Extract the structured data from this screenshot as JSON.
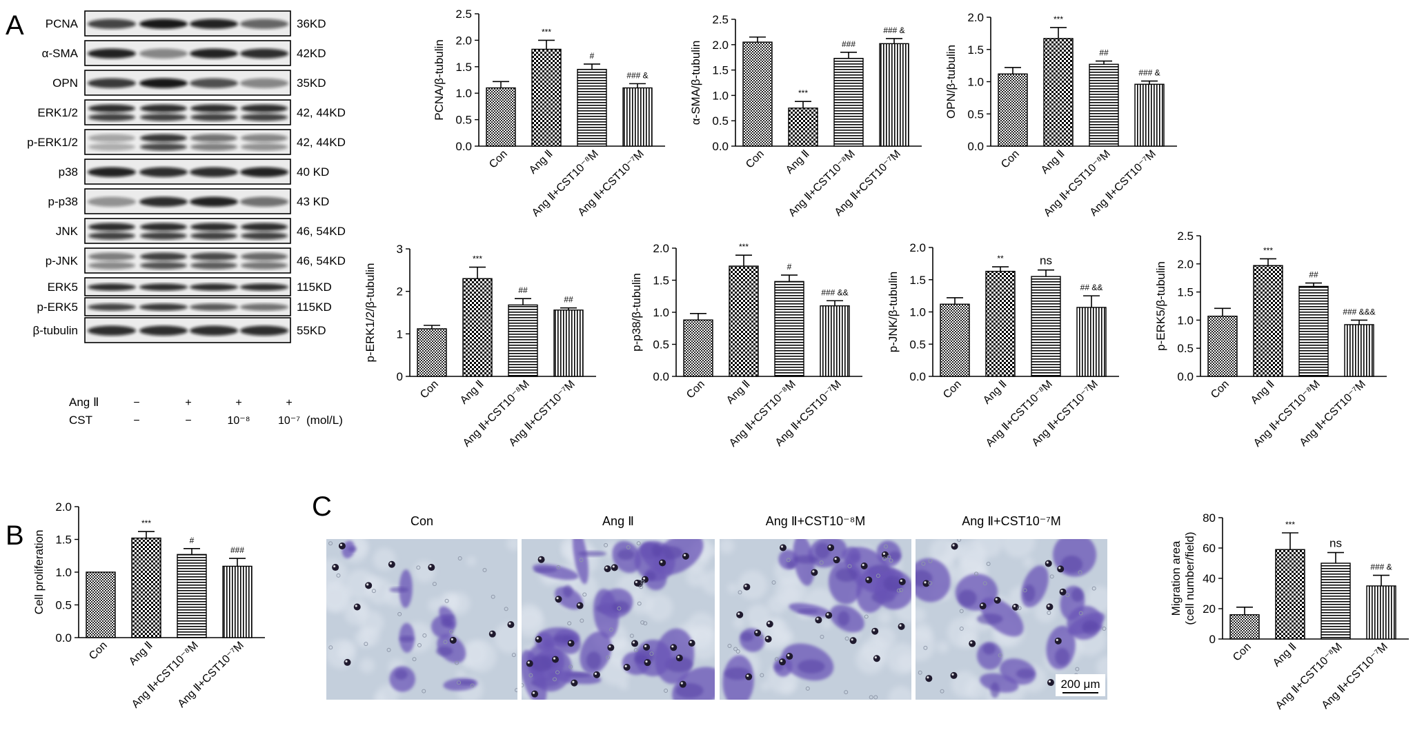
{
  "panels": {
    "a": "A",
    "b": "B",
    "c": "C"
  },
  "blot": {
    "rows": [
      {
        "protein": "PCNA",
        "size": "36KD"
      },
      {
        "protein": "α-SMA",
        "size": "42KD"
      },
      {
        "protein": "OPN",
        "size": "35KD"
      },
      {
        "protein": "ERK1/2",
        "size": "42, 44KD"
      },
      {
        "protein": "p-ERK1/2",
        "size": "42, 44KD"
      },
      {
        "protein": "p38",
        "size": "40 KD"
      },
      {
        "protein": "p-p38",
        "size": "43 KD"
      },
      {
        "protein": "JNK",
        "size": "46, 54KD"
      },
      {
        "protein": "p-JNK",
        "size": "46, 54KD"
      },
      {
        "protein": "ERK5",
        "size": "115KD"
      },
      {
        "protein": "p-ERK5",
        "size": "115KD"
      },
      {
        "protein": "β-tubulin",
        "size": "55KD"
      }
    ],
    "treatments": [
      {
        "name": "Ang Ⅱ",
        "values": [
          "−",
          "+",
          "+",
          "+"
        ]
      },
      {
        "name": "CST",
        "values": [
          "−",
          "−",
          "10⁻⁸",
          "10⁻⁷"
        ],
        "unit": "(mol/L)"
      }
    ]
  },
  "chart_data": [
    {
      "type": "bar",
      "ylabel": "PCNA/β-tubulin",
      "ylim": [
        0,
        2.5
      ],
      "ticks": [
        "0.0",
        "0.5",
        "1.0",
        "1.5",
        "2.0",
        "2.5"
      ],
      "categories": [
        "Con",
        "Ang Ⅱ",
        "Ang Ⅱ+CST10⁻⁸M",
        "Ang Ⅱ+CST10⁻⁷M"
      ],
      "values": [
        1.1,
        1.83,
        1.45,
        1.1
      ],
      "errors": [
        0.12,
        0.17,
        0.1,
        0.08
      ],
      "labels": [
        "",
        "***",
        "#",
        "### &"
      ]
    },
    {
      "type": "bar",
      "ylabel": "α-SMA/β-tubulin",
      "ylim": [
        0,
        2.5
      ],
      "ticks": [
        "0.0",
        "0.5",
        "1.0",
        "1.5",
        "2.0",
        "2.5"
      ],
      "categories": [
        "Con",
        "Ang Ⅱ",
        "Ang Ⅱ+CST10⁻⁸M",
        "Ang Ⅱ+CST10⁻⁷M"
      ],
      "values": [
        2.05,
        0.75,
        1.73,
        2.02
      ],
      "errors": [
        0.1,
        0.13,
        0.12,
        0.1
      ],
      "labels": [
        "",
        "***",
        "###",
        "### &"
      ]
    },
    {
      "type": "bar",
      "ylabel": "OPN/β-tubulin",
      "ylim": [
        0,
        2.0
      ],
      "ticks": [
        "0.0",
        "0.5",
        "1.0",
        "1.5",
        "2.0"
      ],
      "categories": [
        "Con",
        "Ang Ⅱ",
        "Ang Ⅱ+CST10⁻⁸M",
        "Ang Ⅱ+CST10⁻⁷M"
      ],
      "values": [
        1.12,
        1.67,
        1.27,
        0.96
      ],
      "errors": [
        0.1,
        0.17,
        0.05,
        0.05
      ],
      "labels": [
        "",
        "***",
        "##",
        "### &"
      ]
    },
    {
      "type": "bar",
      "ylabel": "p-ERK1/2/β-tubulin",
      "ylim": [
        0,
        3
      ],
      "ticks": [
        "0",
        "1",
        "2",
        "3"
      ],
      "categories": [
        "Con",
        "Ang Ⅱ",
        "Ang Ⅱ+CST10⁻⁸M",
        "Ang Ⅱ+CST10⁻⁷M"
      ],
      "values": [
        1.12,
        2.3,
        1.68,
        1.56
      ],
      "errors": [
        0.08,
        0.27,
        0.15,
        0.05
      ],
      "labels": [
        "",
        "***",
        "##",
        "##"
      ]
    },
    {
      "type": "bar",
      "ylabel": "p-p38/β-tubulin",
      "ylim": [
        0,
        2.0
      ],
      "ticks": [
        "0.0",
        "0.5",
        "1.0",
        "1.5",
        "2.0"
      ],
      "categories": [
        "Con",
        "Ang Ⅱ",
        "Ang Ⅱ+CST10⁻⁸M",
        "Ang Ⅱ+CST10⁻⁷M"
      ],
      "values": [
        0.88,
        1.72,
        1.48,
        1.1
      ],
      "errors": [
        0.1,
        0.17,
        0.1,
        0.08
      ],
      "labels": [
        "",
        "***",
        "#",
        "### &&"
      ]
    },
    {
      "type": "bar",
      "ylabel": "p-JNK/β-tubulin",
      "ylim": [
        0,
        2.0
      ],
      "ticks": [
        "0.0",
        "0.5",
        "1.0",
        "1.5",
        "2.0"
      ],
      "categories": [
        "Con",
        "Ang Ⅱ",
        "Ang Ⅱ+CST10⁻⁸M",
        "Ang Ⅱ+CST10⁻⁷M"
      ],
      "values": [
        1.12,
        1.63,
        1.55,
        1.07
      ],
      "errors": [
        0.1,
        0.07,
        0.1,
        0.18
      ],
      "labels": [
        "",
        "**",
        "ns",
        "## &&"
      ]
    },
    {
      "type": "bar",
      "ylabel": "p-ERK5/β-tubulin",
      "ylim": [
        0,
        2.5
      ],
      "ticks": [
        "0.0",
        "0.5",
        "1.0",
        "1.5",
        "2.0",
        "2.5"
      ],
      "categories": [
        "Con",
        "Ang Ⅱ",
        "Ang Ⅱ+CST10⁻⁸M",
        "Ang Ⅱ+CST10⁻⁷M"
      ],
      "values": [
        1.07,
        1.97,
        1.6,
        0.92
      ],
      "errors": [
        0.14,
        0.12,
        0.06,
        0.08
      ],
      "labels": [
        "",
        "***",
        "##",
        "### &&&"
      ]
    },
    {
      "type": "bar",
      "ylabel": "Cell proliferation",
      "ylim": [
        0,
        2.0
      ],
      "ticks": [
        "0.0",
        "0.5",
        "1.0",
        "1.5",
        "2.0"
      ],
      "categories": [
        "Con",
        "Ang Ⅱ",
        "Ang Ⅱ+CST10⁻⁸M",
        "Ang Ⅱ+CST10⁻⁷M"
      ],
      "values": [
        1.0,
        1.52,
        1.27,
        1.09
      ],
      "errors": [
        0.0,
        0.1,
        0.09,
        0.12
      ],
      "labels": [
        "",
        "***",
        "#",
        "###"
      ]
    },
    {
      "type": "bar",
      "ylabel": "Migration area",
      "ylabel2": "(cell number/field)",
      "ylim": [
        0,
        80
      ],
      "ticks": [
        "0",
        "20",
        "40",
        "60",
        "80"
      ],
      "categories": [
        "Con",
        "Ang Ⅱ",
        "Ang Ⅱ+CST10⁻⁸M",
        "Ang Ⅱ+CST10⁻⁷M"
      ],
      "values": [
        16,
        59,
        50,
        35
      ],
      "errors": [
        5,
        11,
        7,
        7
      ],
      "labels": [
        "",
        "***",
        "ns",
        "### &"
      ]
    }
  ],
  "micrographs": {
    "titles": [
      "Con",
      "Ang Ⅱ",
      "Ang Ⅱ+CST10⁻⁸M",
      "Ang Ⅱ+CST10⁻⁷M"
    ],
    "scale": "200 μm",
    "colors": {
      "background": "#c4cfdc",
      "cell": "#6b55b7",
      "nucleus": "#1f1a2e"
    }
  },
  "colors": {
    "fill": "#ffffff",
    "ink": "#000000"
  }
}
